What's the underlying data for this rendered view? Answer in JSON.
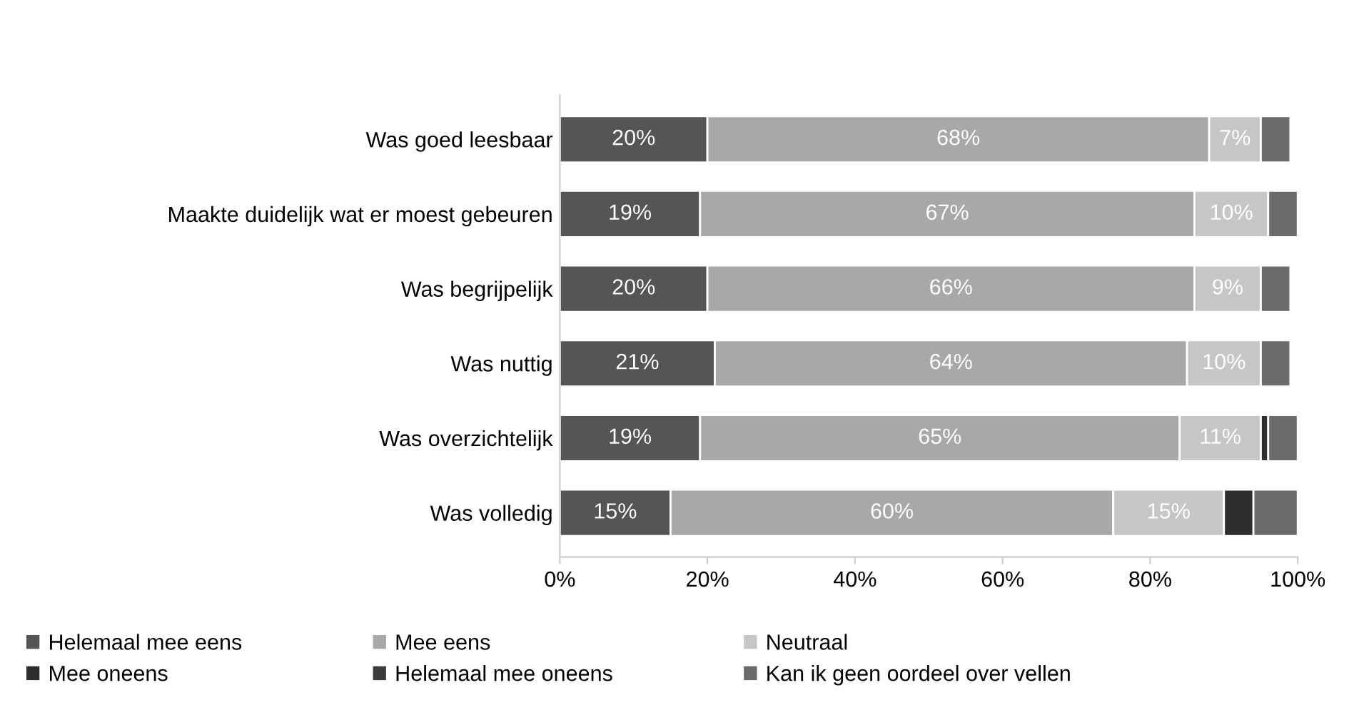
{
  "chart_data": {
    "type": "bar",
    "orientation": "horizontal",
    "stacked": true,
    "categories": [
      "Was goed leesbaar",
      "Maakte duidelijk wat er moest gebeuren",
      "Was begrijpelijk",
      "Was nuttig",
      "Was overzichtelijk",
      "Was volledig"
    ],
    "series": [
      {
        "name": "Helemaal mee eens",
        "color": "#555555",
        "values": [
          20,
          19,
          20,
          21,
          19,
          15
        ],
        "value_labels": [
          "20%",
          "19%",
          "20%",
          "21%",
          "19%",
          "15%"
        ]
      },
      {
        "name": "Mee eens",
        "color": "#a8a8a8",
        "values": [
          68,
          67,
          66,
          64,
          65,
          60
        ],
        "value_labels": [
          "68%",
          "67%",
          "66%",
          "64%",
          "65%",
          "60%"
        ]
      },
      {
        "name": "Neutraal",
        "color": "#c6c6c6",
        "values": [
          7,
          10,
          9,
          10,
          11,
          15
        ],
        "value_labels": [
          "7%",
          "10%",
          "9%",
          "10%",
          "11%",
          "15%"
        ]
      },
      {
        "name": "Mee oneens",
        "color": "#2e2e2e",
        "values": [
          0,
          0,
          0,
          0,
          1,
          4
        ]
      },
      {
        "name": "Helemaal mee oneens",
        "color": "#3c3c3c",
        "values": [
          0,
          0,
          0,
          0,
          0,
          0
        ]
      },
      {
        "name": "Kan ik geen oordeel over vellen",
        "color": "#6a6a6a",
        "values": [
          4,
          4,
          4,
          4,
          4,
          6
        ]
      }
    ],
    "xlim": [
      0,
      100
    ],
    "xticks": [
      {
        "value": 0,
        "label": "0%"
      },
      {
        "value": 20,
        "label": "20%"
      },
      {
        "value": 40,
        "label": "40%"
      },
      {
        "value": 60,
        "label": "60%"
      },
      {
        "value": 80,
        "label": "80%"
      },
      {
        "value": 100,
        "label": "100%"
      }
    ],
    "grid": false,
    "legend": "bottom"
  }
}
